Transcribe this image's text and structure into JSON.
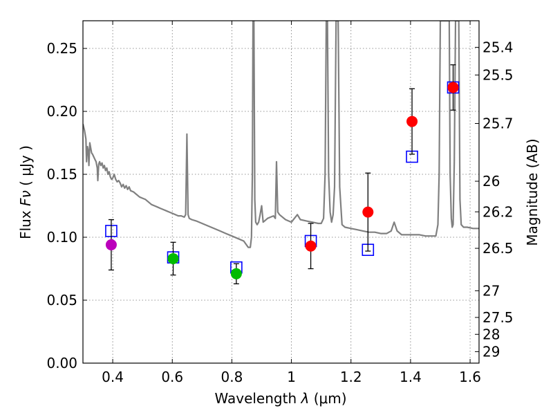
{
  "chart_data": {
    "type": "scatter",
    "xlabel": "Wavelength",
    "xlabel_symbol": "λ",
    "xlabel_unit": "(μm)",
    "ylabel": "Flux",
    "ylabel_symbol": "Fν",
    "ylabel_unit": "( μJy )",
    "y2label": "Magnitude (AB)",
    "xlim": [
      0.3,
      1.63
    ],
    "ylim": [
      0.0,
      0.272
    ],
    "grid": true,
    "x_ticks": [
      0.4,
      0.6,
      0.8,
      1.0,
      1.2,
      1.4,
      1.6
    ],
    "x_tick_labels": [
      "0.4",
      "0.6",
      "0.8",
      "1",
      "1.2",
      "1.4",
      "1.6"
    ],
    "y_ticks": [
      0.0,
      0.05,
      0.1,
      0.15,
      0.2,
      0.25
    ],
    "y_tick_labels": [
      "0.00",
      "0.05",
      "0.10",
      "0.15",
      "0.20",
      "0.25"
    ],
    "mag_ticks": [
      {
        "label": "25.4",
        "flux": 0.2509
      },
      {
        "label": "25.5",
        "flux": 0.2289
      },
      {
        "label": "25.7",
        "flux": 0.1904
      },
      {
        "label": "26",
        "flux": 0.1445
      },
      {
        "label": "26.2",
        "flux": 0.1202
      },
      {
        "label": "26.5",
        "flux": 0.0912
      },
      {
        "label": "27",
        "flux": 0.0575
      },
      {
        "label": "27.5",
        "flux": 0.0363
      },
      {
        "label": "28",
        "flux": 0.0229
      },
      {
        "label": "29",
        "flux": 0.0091
      }
    ],
    "observed": [
      {
        "x": 0.395,
        "y": 0.094,
        "err": 0.02,
        "color": "#bb00bb"
      },
      {
        "x": 0.603,
        "y": 0.083,
        "err": 0.013,
        "color": "#00bb00"
      },
      {
        "x": 0.815,
        "y": 0.071,
        "err": 0.008,
        "color": "#00bb00"
      },
      {
        "x": 1.065,
        "y": 0.093,
        "err": 0.018,
        "color": "#ff0000"
      },
      {
        "x": 1.257,
        "y": 0.12,
        "err": 0.031,
        "color": "#ff0000"
      },
      {
        "x": 1.405,
        "y": 0.192,
        "err": 0.026,
        "color": "#ff0000"
      },
      {
        "x": 1.543,
        "y": 0.219,
        "err": 0.018,
        "color": "#ff0000"
      }
    ],
    "model_bands": [
      {
        "x": 0.395,
        "y": 0.105
      },
      {
        "x": 0.603,
        "y": 0.084
      },
      {
        "x": 0.815,
        "y": 0.076
      },
      {
        "x": 1.065,
        "y": 0.097
      },
      {
        "x": 1.257,
        "y": 0.09
      },
      {
        "x": 1.405,
        "y": 0.164
      },
      {
        "x": 1.543,
        "y": 0.219
      }
    ],
    "sed_color": "#808080",
    "sed": [
      [
        0.3,
        0.19
      ],
      [
        0.305,
        0.185
      ],
      [
        0.31,
        0.178
      ],
      [
        0.312,
        0.16
      ],
      [
        0.315,
        0.172
      ],
      [
        0.318,
        0.168
      ],
      [
        0.32,
        0.157
      ],
      [
        0.323,
        0.175
      ],
      [
        0.326,
        0.171
      ],
      [
        0.329,
        0.167
      ],
      [
        0.332,
        0.166
      ],
      [
        0.336,
        0.164
      ],
      [
        0.34,
        0.162
      ],
      [
        0.344,
        0.16
      ],
      [
        0.348,
        0.155
      ],
      [
        0.35,
        0.145
      ],
      [
        0.353,
        0.158
      ],
      [
        0.356,
        0.16
      ],
      [
        0.36,
        0.157
      ],
      [
        0.364,
        0.159
      ],
      [
        0.368,
        0.155
      ],
      [
        0.372,
        0.157
      ],
      [
        0.376,
        0.153
      ],
      [
        0.38,
        0.155
      ],
      [
        0.384,
        0.15
      ],
      [
        0.388,
        0.152
      ],
      [
        0.392,
        0.148
      ],
      [
        0.396,
        0.146
      ],
      [
        0.4,
        0.147
      ],
      [
        0.405,
        0.15
      ],
      [
        0.41,
        0.146
      ],
      [
        0.415,
        0.144
      ],
      [
        0.42,
        0.145
      ],
      [
        0.425,
        0.143
      ],
      [
        0.43,
        0.14
      ],
      [
        0.435,
        0.142
      ],
      [
        0.44,
        0.139
      ],
      [
        0.445,
        0.141
      ],
      [
        0.45,
        0.138
      ],
      [
        0.455,
        0.14
      ],
      [
        0.46,
        0.137
      ],
      [
        0.47,
        0.136
      ],
      [
        0.48,
        0.134
      ],
      [
        0.49,
        0.132
      ],
      [
        0.5,
        0.131
      ],
      [
        0.51,
        0.13
      ],
      [
        0.52,
        0.128
      ],
      [
        0.53,
        0.126
      ],
      [
        0.54,
        0.125
      ],
      [
        0.55,
        0.124
      ],
      [
        0.56,
        0.123
      ],
      [
        0.57,
        0.122
      ],
      [
        0.58,
        0.121
      ],
      [
        0.59,
        0.12
      ],
      [
        0.6,
        0.119
      ],
      [
        0.61,
        0.118
      ],
      [
        0.62,
        0.117
      ],
      [
        0.63,
        0.117
      ],
      [
        0.64,
        0.116
      ],
      [
        0.645,
        0.118
      ],
      [
        0.649,
        0.182
      ],
      [
        0.653,
        0.118
      ],
      [
        0.657,
        0.115
      ],
      [
        0.665,
        0.114
      ],
      [
        0.68,
        0.113
      ],
      [
        0.7,
        0.111
      ],
      [
        0.72,
        0.109
      ],
      [
        0.74,
        0.107
      ],
      [
        0.76,
        0.105
      ],
      [
        0.78,
        0.103
      ],
      [
        0.8,
        0.101
      ],
      [
        0.82,
        0.099
      ],
      [
        0.84,
        0.097
      ],
      [
        0.855,
        0.092
      ],
      [
        0.862,
        0.092
      ],
      [
        0.866,
        0.1
      ],
      [
        0.869,
        0.15
      ],
      [
        0.871,
        0.272
      ],
      [
        0.874,
        0.272
      ],
      [
        0.877,
        0.13
      ],
      [
        0.88,
        0.112
      ],
      [
        0.885,
        0.11
      ],
      [
        0.89,
        0.112
      ],
      [
        0.895,
        0.118
      ],
      [
        0.9,
        0.125
      ],
      [
        0.905,
        0.112
      ],
      [
        0.91,
        0.113
      ],
      [
        0.92,
        0.115
      ],
      [
        0.93,
        0.116
      ],
      [
        0.94,
        0.117
      ],
      [
        0.946,
        0.115
      ],
      [
        0.95,
        0.16
      ],
      [
        0.954,
        0.12
      ],
      [
        0.96,
        0.118
      ],
      [
        0.98,
        0.114
      ],
      [
        1.0,
        0.112
      ],
      [
        1.01,
        0.115
      ],
      [
        1.02,
        0.118
      ],
      [
        1.03,
        0.114
      ],
      [
        1.05,
        0.113
      ],
      [
        1.07,
        0.112
      ],
      [
        1.09,
        0.111
      ],
      [
        1.1,
        0.111
      ],
      [
        1.108,
        0.115
      ],
      [
        1.113,
        0.15
      ],
      [
        1.117,
        0.272
      ],
      [
        1.121,
        0.272
      ],
      [
        1.125,
        0.15
      ],
      [
        1.13,
        0.12
      ],
      [
        1.135,
        0.112
      ],
      [
        1.14,
        0.118
      ],
      [
        1.145,
        0.14
      ],
      [
        1.15,
        0.272
      ],
      [
        1.157,
        0.272
      ],
      [
        1.162,
        0.14
      ],
      [
        1.17,
        0.11
      ],
      [
        1.18,
        0.108
      ],
      [
        1.2,
        0.107
      ],
      [
        1.22,
        0.106
      ],
      [
        1.24,
        0.105
      ],
      [
        1.26,
        0.104
      ],
      [
        1.28,
        0.104
      ],
      [
        1.3,
        0.103
      ],
      [
        1.32,
        0.103
      ],
      [
        1.335,
        0.105
      ],
      [
        1.345,
        0.112
      ],
      [
        1.355,
        0.105
      ],
      [
        1.37,
        0.102
      ],
      [
        1.39,
        0.102
      ],
      [
        1.41,
        0.102
      ],
      [
        1.43,
        0.102
      ],
      [
        1.45,
        0.101
      ],
      [
        1.47,
        0.101
      ],
      [
        1.485,
        0.101
      ],
      [
        1.492,
        0.11
      ],
      [
        1.496,
        0.15
      ],
      [
        1.5,
        0.272
      ],
      [
        1.53,
        0.272
      ],
      [
        1.533,
        0.15
      ],
      [
        1.537,
        0.115
      ],
      [
        1.54,
        0.108
      ],
      [
        1.543,
        0.11
      ],
      [
        1.547,
        0.16
      ],
      [
        1.551,
        0.272
      ],
      [
        1.562,
        0.272
      ],
      [
        1.566,
        0.13
      ],
      [
        1.57,
        0.11
      ],
      [
        1.578,
        0.108
      ],
      [
        1.59,
        0.108
      ],
      [
        1.61,
        0.107
      ],
      [
        1.63,
        0.107
      ]
    ]
  }
}
